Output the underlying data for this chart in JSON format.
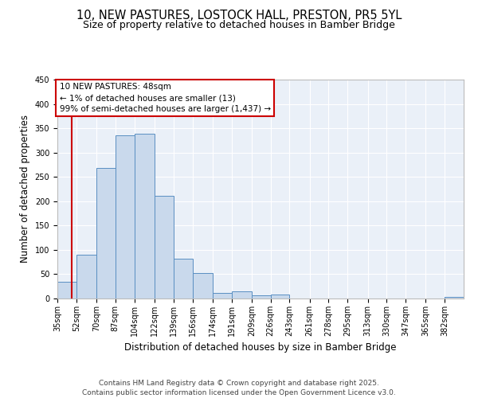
{
  "title1": "10, NEW PASTURES, LOSTOCK HALL, PRESTON, PR5 5YL",
  "title2": "Size of property relative to detached houses in Bamber Bridge",
  "xlabel": "Distribution of detached houses by size in Bamber Bridge",
  "ylabel": "Number of detached properties",
  "bins": [
    35,
    52,
    70,
    87,
    104,
    122,
    139,
    156,
    174,
    191,
    209,
    226,
    243,
    261,
    278,
    295,
    313,
    330,
    347,
    365,
    382
  ],
  "counts": [
    35,
    90,
    268,
    335,
    338,
    211,
    82,
    52,
    11,
    15,
    6,
    8,
    0,
    0,
    0,
    0,
    0,
    0,
    0,
    0,
    4
  ],
  "bar_color": "#c9d9ec",
  "bar_edge_color": "#5a8fc2",
  "bg_color": "#eaf0f8",
  "red_line_x": 48,
  "annotation_text": "10 NEW PASTURES: 48sqm\n← 1% of detached houses are smaller (13)\n99% of semi-detached houses are larger (1,437) →",
  "annotation_box_color": "#ffffff",
  "annotation_border_color": "#cc0000",
  "ylim": [
    0,
    450
  ],
  "yticks": [
    0,
    50,
    100,
    150,
    200,
    250,
    300,
    350,
    400,
    450
  ],
  "footer1": "Contains HM Land Registry data © Crown copyright and database right 2025.",
  "footer2": "Contains public sector information licensed under the Open Government Licence v3.0.",
  "title1_fontsize": 10.5,
  "title2_fontsize": 9,
  "axis_label_fontsize": 8.5,
  "tick_fontsize": 7,
  "annotation_fontsize": 7.5,
  "footer_fontsize": 6.5
}
